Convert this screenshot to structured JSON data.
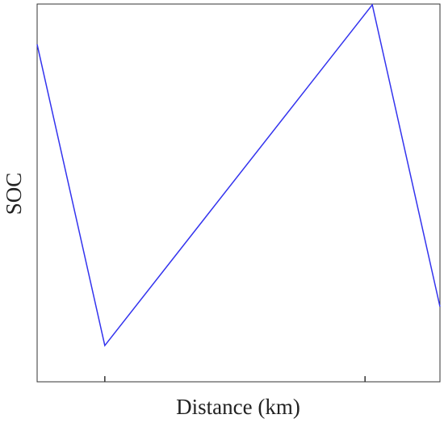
{
  "chart_data": {
    "type": "line",
    "x_label": "Distance (km)",
    "y_label": "SOC",
    "x": [
      0,
      16.8,
      83.2,
      100
    ],
    "series": [
      {
        "color": "#3333ee",
        "values": [
          89.3,
          9.6,
          99.8,
          19.9
        ]
      }
    ],
    "xlim": [
      0,
      100
    ],
    "ylim": [
      0,
      100
    ],
    "xticks": [
      16.8,
      81.4
    ]
  }
}
